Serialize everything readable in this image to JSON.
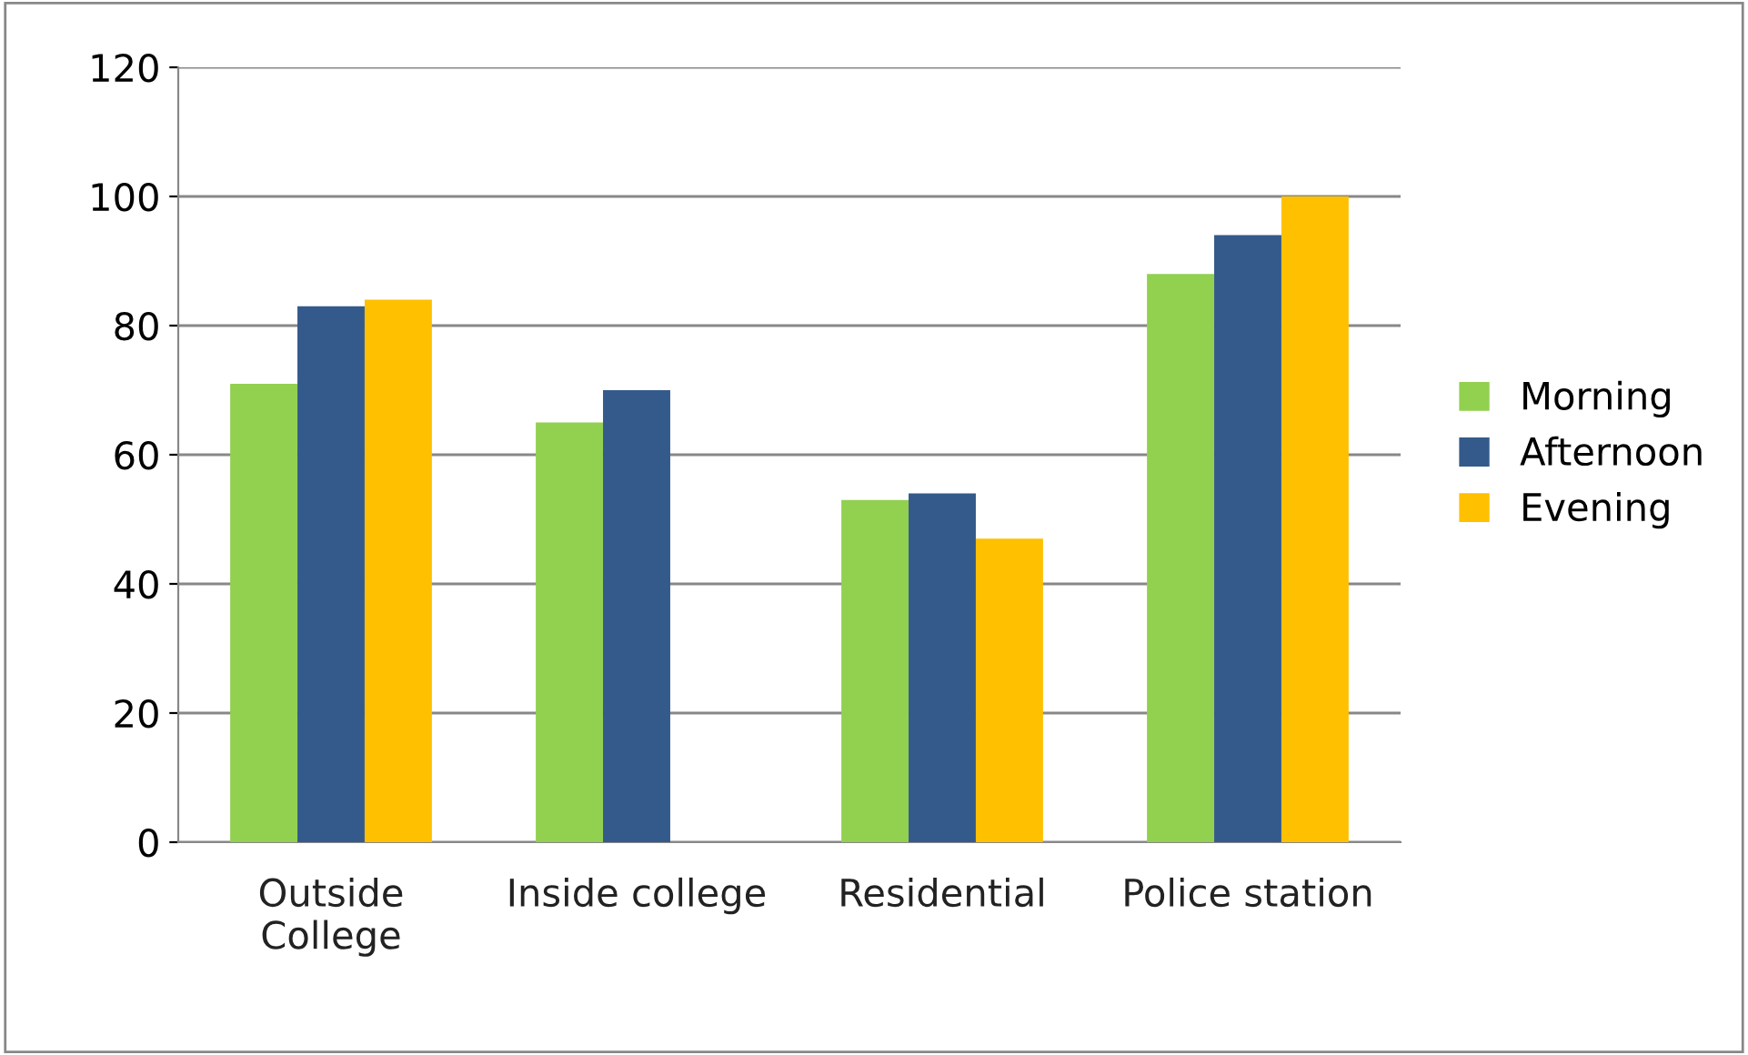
{
  "chart_data": {
    "type": "bar",
    "categories": [
      "Outside\nCollege",
      "Inside college",
      "Residential",
      "Police station"
    ],
    "series": [
      {
        "name": "Morning",
        "color": "#92d050",
        "values": [
          71,
          65,
          53,
          88
        ]
      },
      {
        "name": "Afternoon",
        "color": "#335a8a",
        "values": [
          83,
          70,
          54,
          94
        ]
      },
      {
        "name": "Evening",
        "color": "#ffc000",
        "values": [
          84,
          null,
          47,
          100
        ]
      }
    ],
    "ylim": [
      0,
      120
    ],
    "yticks": [
      0,
      20,
      40,
      60,
      80,
      100,
      120
    ],
    "grid": "y",
    "legend": "right"
  }
}
